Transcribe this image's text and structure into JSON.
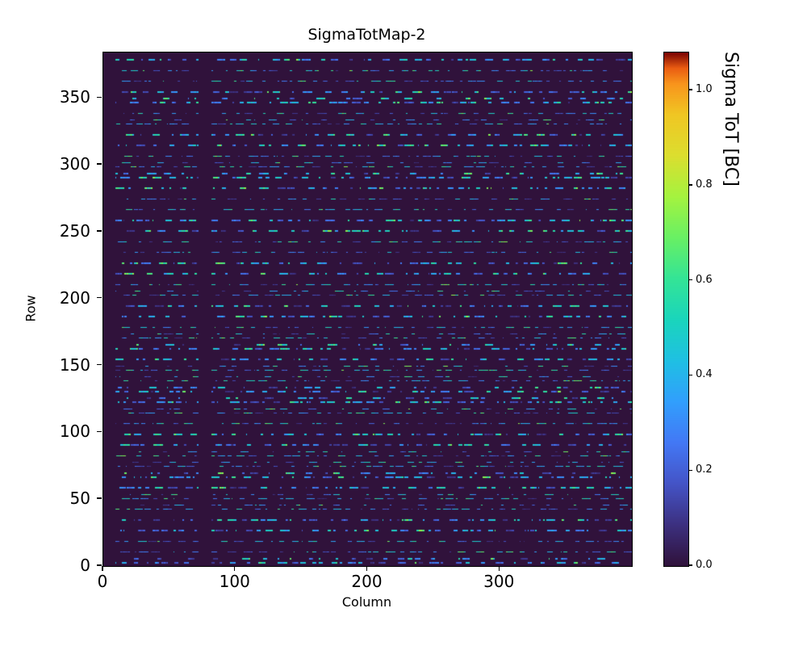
{
  "figure": {
    "background_color": "#ffffff",
    "text_color": "#000000"
  },
  "chart_data": {
    "type": "heatmap",
    "title": "SigmaTotMap-2",
    "xlabel": "Column",
    "ylabel": "Row",
    "xlim": [
      0,
      400
    ],
    "ylim": [
      0,
      384
    ],
    "x_ticks": [
      0,
      100,
      200,
      300
    ],
    "x_tick_labels": [
      "0",
      "100",
      "200",
      "300"
    ],
    "y_ticks": [
      0,
      50,
      100,
      150,
      200,
      250,
      300,
      350
    ],
    "y_tick_labels": [
      "0",
      "50",
      "100",
      "150",
      "200",
      "250",
      "300",
      "350"
    ],
    "grid": false,
    "colormap": "turbo",
    "background_value": 0.0,
    "colorbar": {
      "label": "Sigma ToT [BC]",
      "vmin": 0.0,
      "vmax": 1.08,
      "ticks": [
        0.0,
        0.2,
        0.4,
        0.6,
        0.8,
        1.0
      ],
      "tick_labels": [
        "0.0",
        "0.2",
        "0.4",
        "0.6",
        "0.8",
        "1.0"
      ],
      "top_color": "#7a0403",
      "bottom_color": "#30123b"
    },
    "pattern": {
      "description": "Sparse noise map: mostly zero-valued (dark) pixels with horizontal dashed stripes of low sigma values (~0.1-0.6 BC) on every 8th row; columns 0-8 and 72-81 contain no data (vertical dark bands).",
      "seed": 1337,
      "n_cols": 400,
      "n_rows": 384,
      "stripe_row_start": 2,
      "stripe_row_period": 8,
      "companion_row_offset": 3,
      "companion_probability": 0.3,
      "gap_len_min": 1,
      "gap_len_max": 10,
      "dash_len_min": 1,
      "dash_len_max": 7,
      "value_min": 0.08,
      "value_max": 0.62,
      "empty_col_ranges": [
        [
          0,
          8
        ],
        [
          72,
          81
        ]
      ]
    }
  }
}
